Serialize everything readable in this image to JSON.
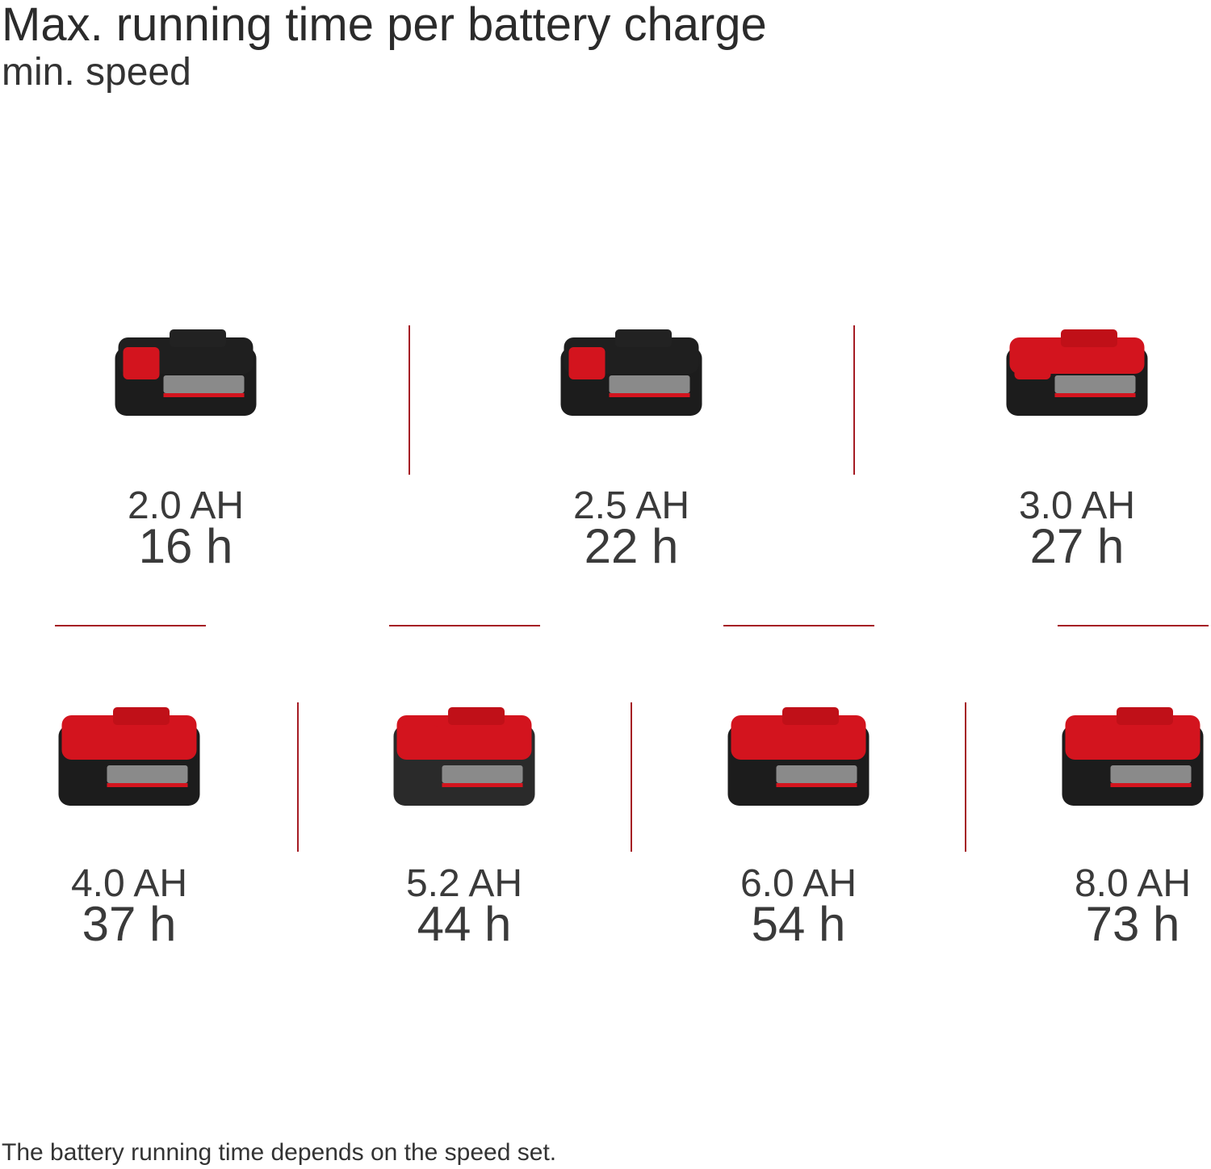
{
  "header": {
    "title": "Max. running time per battery charge",
    "subtitle": "min. speed"
  },
  "batteries": [
    {
      "capacity": "2.0 AH",
      "runtime": "16 h"
    },
    {
      "capacity": "2.5 AH",
      "runtime": "22 h"
    },
    {
      "capacity": "3.0 AH",
      "runtime": "27 h"
    },
    {
      "capacity": "4.0 AH",
      "runtime": "37 h"
    },
    {
      "capacity": "5.2 AH",
      "runtime": "44 h"
    },
    {
      "capacity": "6.0 AH",
      "runtime": "54 h"
    },
    {
      "capacity": "8.0 AH",
      "runtime": "73 h"
    }
  ],
  "footnote": "The battery running time depends on the speed set."
}
